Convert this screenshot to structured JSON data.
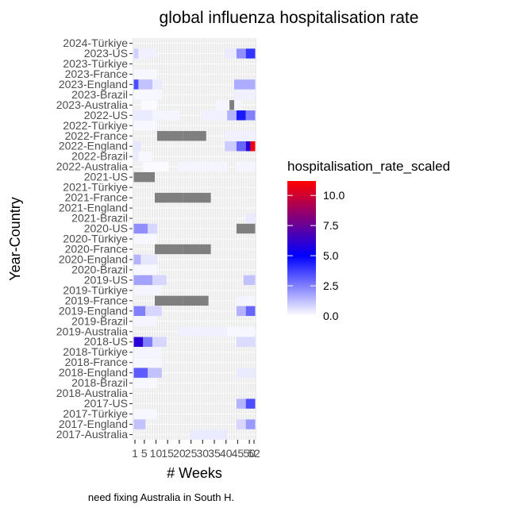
{
  "chart_data": {
    "type": "heatmap",
    "title": "global influenza hospitalisation rate",
    "xlabel": "# Weeks",
    "ylabel": "Year-Country",
    "caption": "need fixing Australia in South H.",
    "x_ticks": [
      1,
      5,
      10,
      15,
      20,
      25,
      30,
      35,
      40,
      45,
      50,
      52
    ],
    "x_tick_labels": [
      "1",
      "5",
      "10",
      "15",
      "20",
      "25",
      "30",
      "35",
      "40",
      "45",
      "50",
      "52"
    ],
    "xlim": [
      1,
      52
    ],
    "legend": {
      "title": "hospitalisation_rate_scaled",
      "position": "right",
      "ticks": [
        "0.0",
        "2.5",
        "5.0",
        "7.5",
        "10.0"
      ],
      "tick_values": [
        0,
        2.5,
        5.0,
        7.5,
        10.0
      ],
      "range": [
        0,
        11.2
      ],
      "colors": [
        "#ffffff",
        "#0000ff",
        "#ff0000"
      ]
    },
    "na_color": "#7f7f7f",
    "categories_top_to_bottom": [
      "2024-Türkiye",
      "2023-US",
      "2023-Türkiye",
      "2023-France",
      "2023-England",
      "2023-Brazil",
      "2023-Australia",
      "2022-US",
      "2022-Türkiye",
      "2022-France",
      "2022-England",
      "2022-Brazil",
      "2022-Australia",
      "2021-US",
      "2021-Türkiye",
      "2021-France",
      "2021-England",
      "2021-Brazil",
      "2020-US",
      "2020-Türkiye",
      "2020-France",
      "2020-England",
      "2020-Brazil",
      "2019-US",
      "2019-Türkiye",
      "2019-France",
      "2019-England",
      "2019-Brazil",
      "2019-Australia",
      "2018-US",
      "2018-Türkiye",
      "2018-France",
      "2018-England",
      "2018-Brazil",
      "2018-Australia",
      "2017-US",
      "2017-Türkiye",
      "2017-England",
      "2017-Australia"
    ],
    "rows": [
      {
        "label": "2024-Türkiye",
        "segments": []
      },
      {
        "label": "2023-US",
        "segments": [
          [
            1,
            2,
            0.9
          ],
          [
            3,
            10,
            0.3
          ],
          [
            40,
            44,
            0.4
          ],
          [
            45,
            48,
            2.2
          ],
          [
            49,
            52,
            4.0
          ]
        ]
      },
      {
        "label": "2023-Türkiye",
        "segments": []
      },
      {
        "label": "2023-France",
        "segments": [
          [
            1,
            10,
            0.15
          ]
        ]
      },
      {
        "label": "2023-England",
        "segments": [
          [
            1,
            2,
            3.5
          ],
          [
            3,
            8,
            1.2
          ],
          [
            9,
            12,
            0.4
          ],
          [
            44,
            52,
            1.6
          ]
        ]
      },
      {
        "label": "2023-Brazil",
        "segments": [
          [
            1,
            12,
            0.15
          ],
          [
            44,
            52,
            0.3
          ]
        ]
      },
      {
        "label": "2023-Australia",
        "segments": [
          [
            4,
            10,
            0.1
          ],
          [
            36,
            46,
            0.2
          ],
          [
            42,
            43,
            "NA"
          ]
        ]
      },
      {
        "label": "2022-US",
        "segments": [
          [
            1,
            8,
            0.4
          ],
          [
            9,
            20,
            0.2
          ],
          [
            30,
            40,
            0.3
          ],
          [
            41,
            44,
            1.5
          ],
          [
            45,
            48,
            4.5
          ],
          [
            49,
            52,
            2.5
          ]
        ]
      },
      {
        "label": "2022-Türkiye",
        "segments": [
          [
            1,
            10,
            0.15
          ]
        ]
      },
      {
        "label": "2022-France",
        "segments": [
          [
            11,
            21,
            "NA"
          ],
          [
            22,
            31,
            "NA"
          ],
          [
            40,
            52,
            0.3
          ]
        ]
      },
      {
        "label": "2022-England",
        "segments": [
          [
            1,
            3,
            0.5
          ],
          [
            40,
            44,
            1.0
          ],
          [
            45,
            48,
            3.0
          ],
          [
            49,
            50,
            6.0
          ],
          [
            51,
            52,
            11.0
          ]
        ]
      },
      {
        "label": "2022-Brazil",
        "segments": [
          [
            1,
            2,
            0.4
          ],
          [
            3,
            8,
            0.15
          ]
        ]
      },
      {
        "label": "2022-Australia",
        "segments": [
          [
            5,
            15,
            0.1
          ],
          [
            20,
            40,
            0.2
          ],
          [
            45,
            52,
            0.2
          ]
        ]
      },
      {
        "label": "2021-US",
        "segments": [
          [
            1,
            9,
            "NA"
          ]
        ]
      },
      {
        "label": "2021-Türkiye",
        "segments": []
      },
      {
        "label": "2021-France",
        "segments": [
          [
            10,
            21,
            "NA"
          ],
          [
            22,
            33,
            "NA"
          ]
        ]
      },
      {
        "label": "2021-England",
        "segments": []
      },
      {
        "label": "2021-Brazil",
        "segments": [
          [
            49,
            52,
            0.4
          ]
        ]
      },
      {
        "label": "2020-US",
        "segments": [
          [
            1,
            6,
            2.2
          ],
          [
            7,
            10,
            0.8
          ],
          [
            45,
            52,
            "NA"
          ]
        ]
      },
      {
        "label": "2020-Türkiye",
        "segments": [
          [
            1,
            10,
            0.15
          ]
        ]
      },
      {
        "label": "2020-France",
        "segments": [
          [
            10,
            21,
            "NA"
          ],
          [
            22,
            33,
            "NA"
          ]
        ]
      },
      {
        "label": "2020-England",
        "segments": [
          [
            1,
            3,
            1.5
          ],
          [
            4,
            10,
            0.5
          ]
        ]
      },
      {
        "label": "2020-Brazil",
        "segments": [
          [
            1,
            10,
            0.15
          ]
        ]
      },
      {
        "label": "2019-US",
        "segments": [
          [
            1,
            8,
            1.8
          ],
          [
            9,
            14,
            0.8
          ],
          [
            48,
            52,
            1.2
          ]
        ]
      },
      {
        "label": "2019-Türkiye",
        "segments": [
          [
            1,
            12,
            0.2
          ]
        ]
      },
      {
        "label": "2019-France",
        "segments": [
          [
            10,
            21,
            "NA"
          ],
          [
            22,
            32,
            "NA"
          ],
          [
            45,
            52,
            0.2
          ]
        ]
      },
      {
        "label": "2019-England",
        "segments": [
          [
            1,
            5,
            2.5
          ],
          [
            6,
            12,
            0.8
          ],
          [
            45,
            48,
            1.5
          ],
          [
            49,
            52,
            3.0
          ]
        ]
      },
      {
        "label": "2019-Brazil",
        "segments": [
          [
            1,
            10,
            0.2
          ]
        ]
      },
      {
        "label": "2019-Australia",
        "segments": [
          [
            20,
            40,
            0.3
          ],
          [
            41,
            52,
            0.15
          ]
        ]
      },
      {
        "label": "2018-US",
        "segments": [
          [
            1,
            4,
            6.0
          ],
          [
            5,
            8,
            2.5
          ],
          [
            9,
            14,
            0.8
          ],
          [
            45,
            52,
            0.7
          ]
        ]
      },
      {
        "label": "2018-Türkiye",
        "segments": [
          [
            1,
            12,
            0.2
          ]
        ]
      },
      {
        "label": "2018-France",
        "segments": [
          [
            1,
            12,
            0.15
          ]
        ]
      },
      {
        "label": "2018-England",
        "segments": [
          [
            1,
            6,
            3.2
          ],
          [
            7,
            12,
            1.2
          ],
          [
            45,
            52,
            0.4
          ]
        ]
      },
      {
        "label": "2018-Brazil",
        "segments": [
          [
            1,
            10,
            0.15
          ]
        ]
      },
      {
        "label": "2018-Australia",
        "segments": []
      },
      {
        "label": "2017-US",
        "segments": [
          [
            45,
            48,
            1.5
          ],
          [
            49,
            52,
            3.5
          ]
        ]
      },
      {
        "label": "2017-Türkiye",
        "segments": [
          [
            1,
            10,
            0.15
          ]
        ]
      },
      {
        "label": "2017-England",
        "segments": [
          [
            1,
            5,
            1.2
          ],
          [
            45,
            48,
            0.8
          ],
          [
            49,
            52,
            2.0
          ]
        ]
      },
      {
        "label": "2017-Australia",
        "segments": [
          [
            25,
            40,
            0.4
          ]
        ]
      }
    ]
  }
}
